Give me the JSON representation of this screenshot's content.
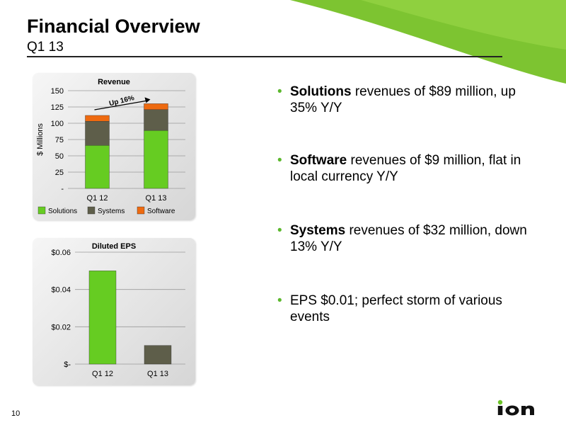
{
  "slide": {
    "title": "Financial Overview",
    "subtitle": "Q1 13",
    "page_number": "10",
    "logo_text": "ion"
  },
  "bullets": [
    {
      "bold": "Solutions",
      "text": " revenues of $89 million, up 35% Y/Y"
    },
    {
      "bold": "Software",
      "text": " revenues of $9 million, flat in local currency Y/Y"
    },
    {
      "bold": "Systems",
      "text": " revenues of $32 million, down 13% Y/Y"
    },
    {
      "bold": "",
      "text": "EPS $0.01; perfect storm of various events"
    }
  ],
  "colors": {
    "solutions": "#66cc22",
    "systems": "#5e5e4a",
    "software": "#ee6a10",
    "bullet": "#5cb82e",
    "eps_q112": "#66cc22",
    "eps_q113": "#5e5e4a"
  },
  "chart_data": [
    {
      "type": "bar",
      "stacked": true,
      "title": "Revenue",
      "ylabel": "$ Millions",
      "categories": [
        "Q1 12",
        "Q1 13"
      ],
      "series": [
        {
          "name": "Solutions",
          "values": [
            66,
            89
          ]
        },
        {
          "name": "Systems",
          "values": [
            37,
            32
          ]
        },
        {
          "name": "Software",
          "values": [
            9,
            9
          ]
        }
      ],
      "ylim": [
        0,
        150
      ],
      "yticks": [
        0,
        25,
        50,
        75,
        100,
        125,
        150
      ],
      "ytick_labels": [
        "-",
        "25",
        "50",
        "75",
        "100",
        "125",
        "150"
      ],
      "annotation": "Up 16%",
      "legend": "bottom",
      "grid": true
    },
    {
      "type": "bar",
      "title": "Diluted EPS",
      "categories": [
        "Q1 12",
        "Q1 13"
      ],
      "values": [
        0.05,
        0.01
      ],
      "ylim": [
        0,
        0.06
      ],
      "yticks": [
        0,
        0.02,
        0.04,
        0.06
      ],
      "ytick_labels": [
        "$-",
        "$0.02",
        "$0.04",
        "$0.06"
      ],
      "grid": true
    }
  ]
}
